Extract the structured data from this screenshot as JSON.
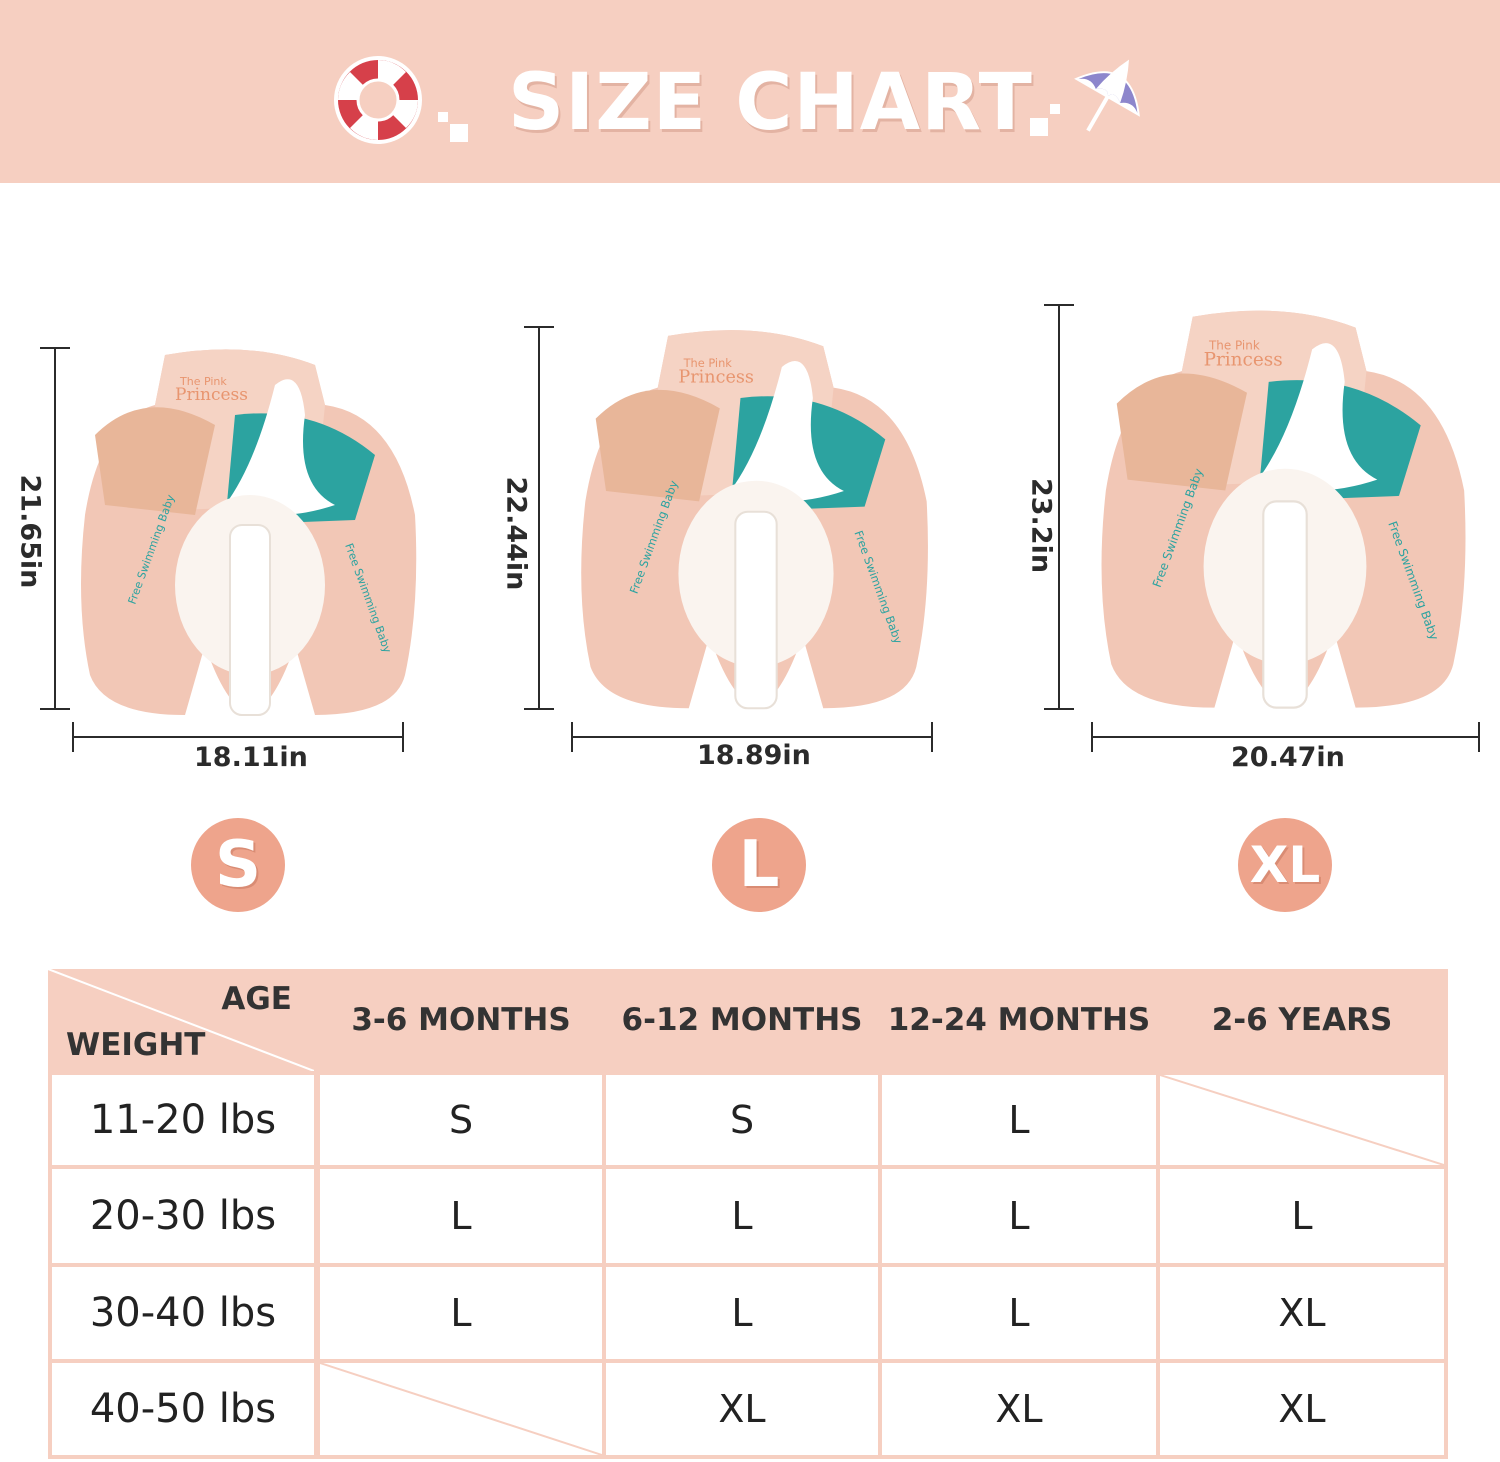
{
  "header": {
    "title": "SIZE CHART",
    "left_icon": "life-ring-icon",
    "right_icon": "beach-umbrella-icon",
    "background_color": "#f6cfc1"
  },
  "products": [
    {
      "size": "S",
      "height_label": "21.65in",
      "width_label": "18.11in"
    },
    {
      "size": "L",
      "height_label": "22.44in",
      "width_label": "18.89in"
    },
    {
      "size": "XL",
      "height_label": "23.2in",
      "width_label": "20.47in"
    }
  ],
  "product_text": {
    "brand_small": "The Pink",
    "brand_large": "Princess",
    "side_text": "Free Swimming Baby"
  },
  "table": {
    "corner_top": "AGE",
    "corner_bottom": "WEIGHT",
    "columns": [
      "3-6 MONTHS",
      "6-12 MONTHS",
      "12-24 MONTHS",
      "2-6 YEARS"
    ],
    "rows": [
      {
        "weight": "11-20 lbs",
        "cells": [
          "S",
          "S",
          "L",
          ""
        ]
      },
      {
        "weight": "20-30 lbs",
        "cells": [
          "L",
          "L",
          "L",
          "L"
        ]
      },
      {
        "weight": "30-40 lbs",
        "cells": [
          "L",
          "L",
          "L",
          "XL"
        ]
      },
      {
        "weight": "40-50 lbs",
        "cells": [
          "",
          "XL",
          "XL",
          "XL"
        ]
      }
    ]
  },
  "colors": {
    "accent": "#eea48c",
    "table_border": "#f6cfc1",
    "product_pink": "#f2c7b6",
    "product_teal": "#2ca3a0"
  }
}
